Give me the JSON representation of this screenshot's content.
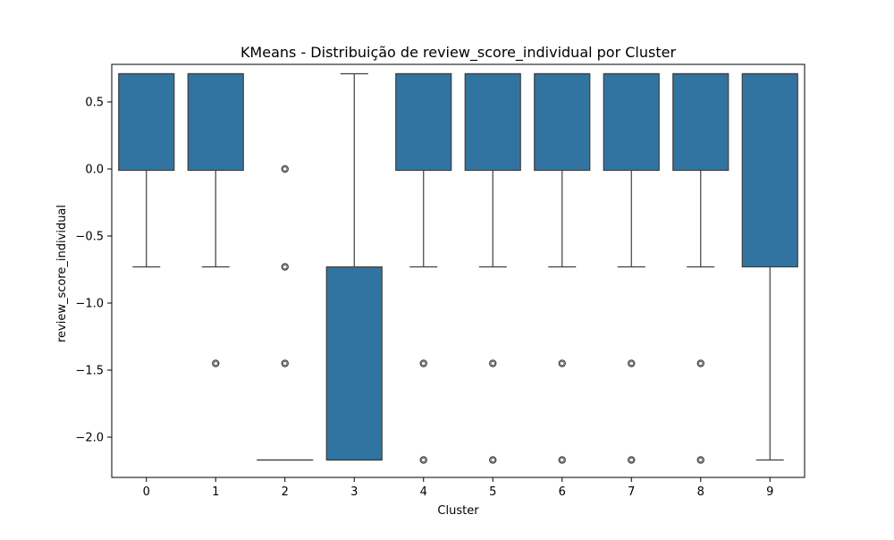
{
  "chart_data": {
    "type": "box",
    "title": "KMeans - Distribuição de review_score_individual por Cluster",
    "xlabel": "Cluster",
    "ylabel": "review_score_individual",
    "categories": [
      "0",
      "1",
      "2",
      "3",
      "4",
      "5",
      "6",
      "7",
      "8",
      "9"
    ],
    "ylim": [
      -2.3,
      0.78
    ],
    "yticks": [
      0.5,
      0.0,
      -0.5,
      -1.0,
      -1.5,
      -2.0
    ],
    "ytick_labels": [
      "0.5",
      "0.0",
      "−0.5",
      "−1.0",
      "−1.5",
      "−2.0"
    ],
    "box_color": "#3274a1",
    "edge_color": "#3f3f3f",
    "grid": false,
    "boxes": [
      {
        "category": "0",
        "whisker_low": -0.73,
        "q1": -0.01,
        "median": 0.71,
        "q3": 0.71,
        "whisker_high": 0.71,
        "outliers": []
      },
      {
        "category": "1",
        "whisker_low": -0.73,
        "q1": -0.01,
        "median": 0.71,
        "q3": 0.71,
        "whisker_high": 0.71,
        "outliers": [
          -1.45
        ]
      },
      {
        "category": "2",
        "whisker_low": -2.17,
        "q1": -2.17,
        "median": -2.17,
        "q3": -2.17,
        "whisker_high": -2.17,
        "outliers": [
          0.0,
          -0.73,
          -1.45
        ]
      },
      {
        "category": "3",
        "whisker_low": -2.17,
        "q1": -2.17,
        "median": -2.17,
        "q3": -0.73,
        "whisker_high": 0.71,
        "outliers": []
      },
      {
        "category": "4",
        "whisker_low": -0.73,
        "q1": -0.01,
        "median": 0.71,
        "q3": 0.71,
        "whisker_high": 0.71,
        "outliers": [
          -1.45,
          -2.17
        ]
      },
      {
        "category": "5",
        "whisker_low": -0.73,
        "q1": -0.01,
        "median": 0.71,
        "q3": 0.71,
        "whisker_high": 0.71,
        "outliers": [
          -1.45,
          -2.17
        ]
      },
      {
        "category": "6",
        "whisker_low": -0.73,
        "q1": -0.01,
        "median": 0.71,
        "q3": 0.71,
        "whisker_high": 0.71,
        "outliers": [
          -1.45,
          -2.17
        ]
      },
      {
        "category": "7",
        "whisker_low": -0.73,
        "q1": -0.01,
        "median": 0.71,
        "q3": 0.71,
        "whisker_high": 0.71,
        "outliers": [
          -1.45,
          -2.17
        ]
      },
      {
        "category": "8",
        "whisker_low": -0.73,
        "q1": -0.01,
        "median": 0.71,
        "q3": 0.71,
        "whisker_high": 0.71,
        "outliers": [
          -1.45,
          -2.17
        ]
      },
      {
        "category": "9",
        "whisker_low": -2.17,
        "q1": -0.73,
        "median": 0.71,
        "q3": 0.71,
        "whisker_high": 0.71,
        "outliers": []
      }
    ]
  }
}
